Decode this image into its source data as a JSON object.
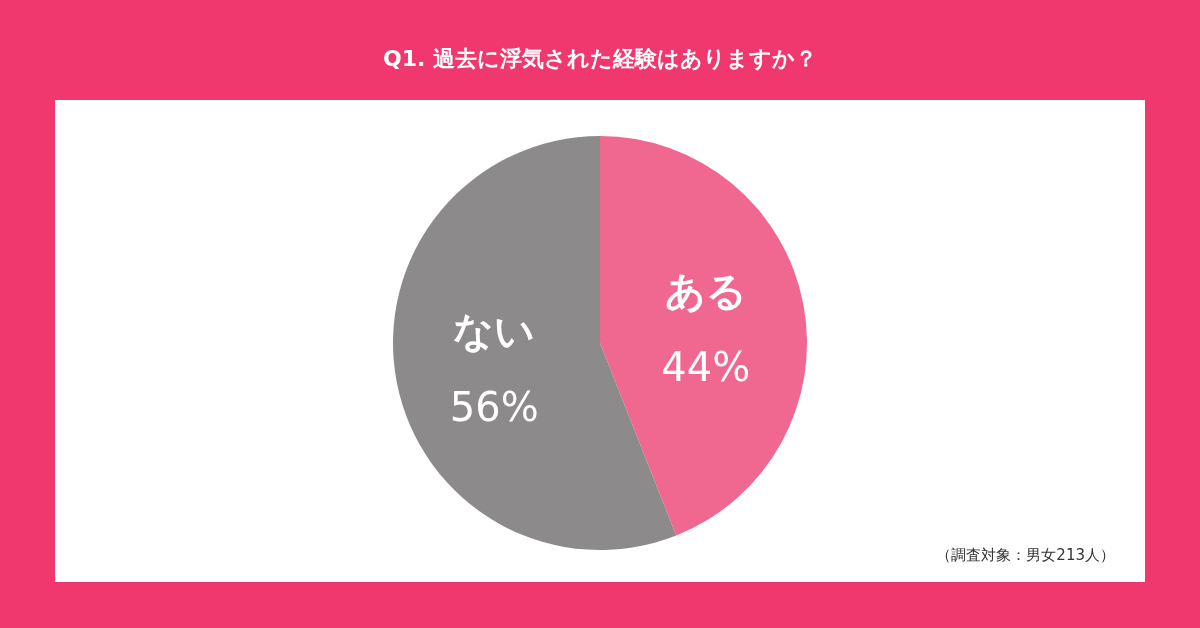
{
  "chart_data": {
    "type": "pie",
    "title": "Q1. 過去に浮気された経験はありますか？",
    "categories": [
      "ある",
      "ない"
    ],
    "values": [
      44,
      56
    ],
    "colors": [
      "#f06890",
      "#8c8a8b"
    ],
    "value_labels": [
      "44%",
      "56%"
    ],
    "annotations": [
      "（調査対象：男女213人）"
    ]
  }
}
